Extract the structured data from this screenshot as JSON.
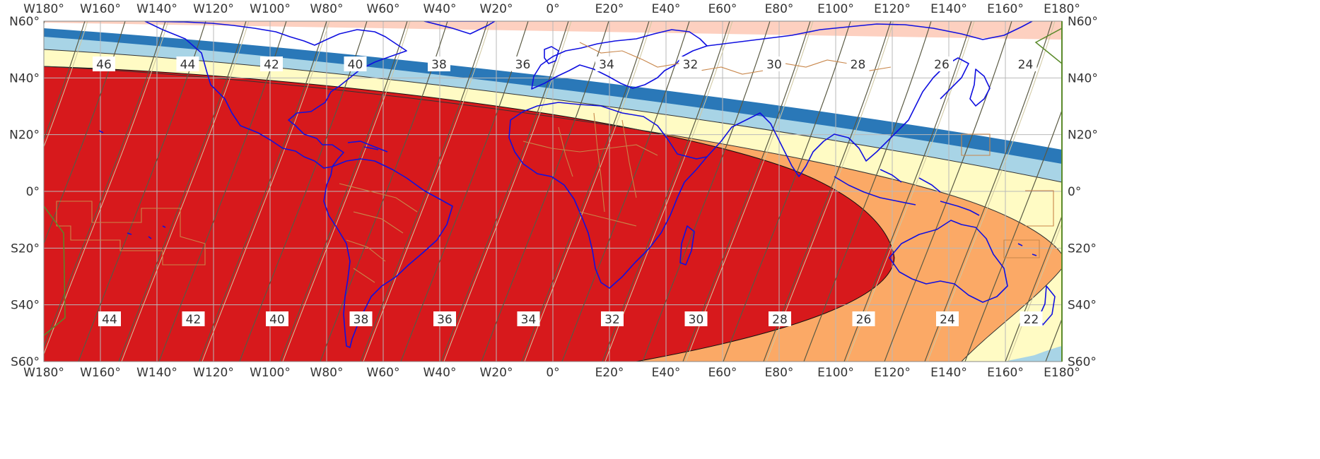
{
  "map": {
    "longitude_labels": [
      "W180°",
      "W160°",
      "W140°",
      "W120°",
      "W100°",
      "W80°",
      "W60°",
      "W40°",
      "W20°",
      "0°",
      "E20°",
      "E40°",
      "E60°",
      "E80°",
      "E100°",
      "E120°",
      "E140°",
      "E160°",
      "E180°"
    ],
    "latitude_labels": [
      "N60°",
      "N40°",
      "N20°",
      "0°",
      "S20°",
      "S40°",
      "S60°"
    ],
    "upper_contour_labels": [
      "46",
      "44",
      "42",
      "40",
      "38",
      "36",
      "34",
      "32",
      "30",
      "28",
      "26",
      "24"
    ],
    "lower_contour_labels": [
      "44",
      "42",
      "40",
      "38",
      "36",
      "34",
      "32",
      "30",
      "28",
      "26",
      "24",
      "22"
    ],
    "zone_colors": {
      "pink": "#fdd0c0",
      "dark_blue": "#2a78b8",
      "light_blue": "#a8d4e6",
      "pale_yellow": "#fffbc4",
      "orange": "#fba966",
      "red": "#d7191c",
      "coast": "#1010e0",
      "border": "#c8864a",
      "grid": "#b9b9b9"
    }
  }
}
